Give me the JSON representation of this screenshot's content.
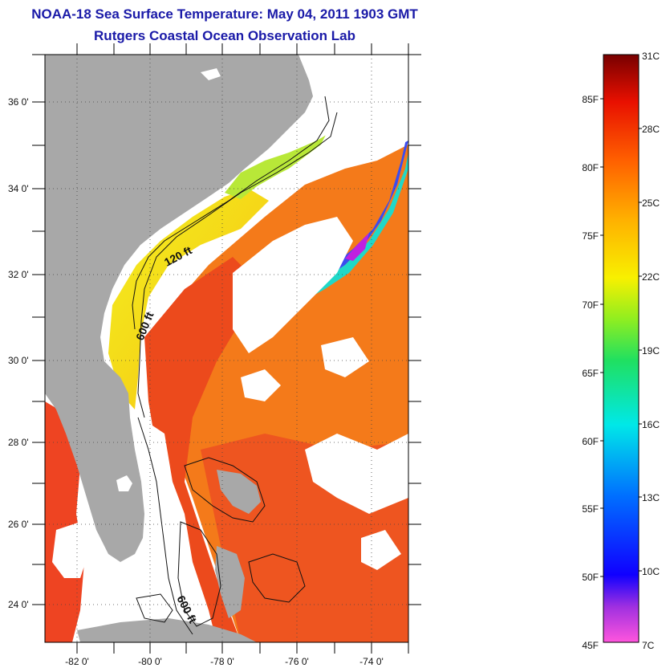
{
  "title_line1": "NOAA-18 Sea Surface Temperature:  May 04, 2011 1903 GMT",
  "title_line2": "Rutgers Coastal Ocean Observation Lab",
  "lat_labels": [
    "36 0'",
    "34 0'",
    "32 0'",
    "30 0'",
    "28 0'",
    "26 0'",
    "24 0'"
  ],
  "lon_labels": [
    "-82 0'",
    "-80 0'",
    "-78 0'",
    "-76 0'",
    "-74 0'"
  ],
  "depth_labels": [
    "120 ft",
    "600 ft",
    "600 ft"
  ],
  "colorbar": {
    "fahrenheit_labels": [
      "85F",
      "80F",
      "75F",
      "70F",
      "65F",
      "60F",
      "55F",
      "50F",
      "45F"
    ],
    "celsius_labels": [
      "31C",
      "28C",
      "25C",
      "22C",
      "19C",
      "16C",
      "13C",
      "10C",
      "7C"
    ]
  },
  "colors": {
    "title": "#1a1aa8",
    "land": "#a8a8a8",
    "ocean_warm": "#ee4a1a",
    "ocean_mid": "#f47a1a",
    "cloud": "#ffffff"
  }
}
